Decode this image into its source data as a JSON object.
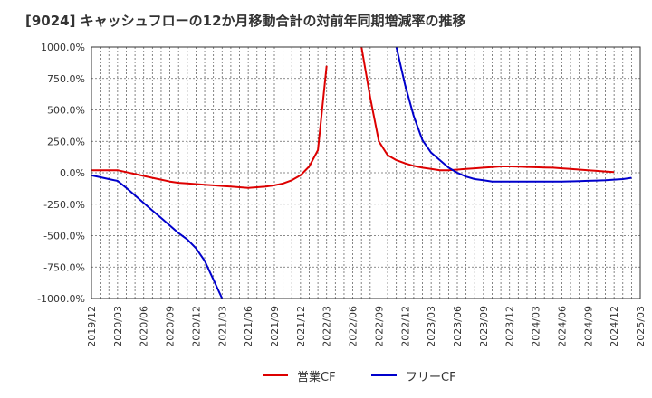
{
  "chart_data": {
    "type": "line",
    "title": "[9024]  キャッシュフローの12か月移動合計の対前年同期増減率の推移",
    "ylim": [
      -1000,
      1000
    ],
    "y_ticks": [
      1000,
      750,
      500,
      250,
      0,
      -250,
      -500,
      -750,
      -1000
    ],
    "y_tick_labels": [
      "1000.0%",
      "750.0%",
      "500.0%",
      "250.0%",
      "0.0%",
      "-250.0%",
      "-500.0%",
      "-750.0%",
      "-1000.0%"
    ],
    "x_start": "2019-12",
    "x_end": "2025-03",
    "x_tick_labels": [
      "2019/12",
      "2020/03",
      "2020/06",
      "2020/09",
      "2020/12",
      "2021/03",
      "2021/06",
      "2021/09",
      "2021/12",
      "2022/03",
      "2022/06",
      "2022/09",
      "2022/12",
      "2023/03",
      "2023/06",
      "2023/09",
      "2023/12",
      "2024/03",
      "2024/06",
      "2024/09",
      "2024/12",
      "2025/03"
    ],
    "series": [
      {
        "name": "営業CF",
        "color": "#dd0000",
        "segments": [
          {
            "start_index": 0,
            "values": [
              20,
              20,
              20,
              20,
              5,
              -10,
              -25,
              -40,
              -55,
              -70,
              -80,
              -85,
              -90,
              -95,
              -100,
              -105,
              -110,
              -115,
              -120,
              -115,
              -110,
              -100,
              -85,
              -60,
              -20,
              50,
              180,
              850
            ]
          },
          {
            "start_index": 31,
            "values": [
              1000,
              600,
              250,
              140,
              100,
              75,
              55,
              40,
              30,
              20,
              20,
              25,
              30,
              35,
              40,
              45,
              50,
              50,
              48,
              46,
              44,
              42,
              40,
              35,
              30,
              25,
              20,
              15,
              10,
              5
            ]
          }
        ]
      },
      {
        "name": "フリーCF",
        "color": "#0000cc",
        "segments": [
          {
            "start_index": 0,
            "values": [
              -20,
              -35,
              -50,
              -65,
              -120,
              -180,
              -240,
              -300,
              -360,
              -420,
              -480,
              -530,
              -600,
              -700,
              -850,
              -1000
            ]
          },
          {
            "start_index": 35,
            "values": [
              1000,
              700,
              450,
              260,
              160,
              100,
              40,
              0,
              -30,
              -50,
              -60,
              -70,
              -70,
              -70,
              -70,
              -70,
              -70,
              -70,
              -70,
              -70,
              -68,
              -66,
              -64,
              -62,
              -60,
              -55,
              -50,
              -40
            ]
          }
        ]
      }
    ],
    "legend_position": "bottom-center"
  }
}
